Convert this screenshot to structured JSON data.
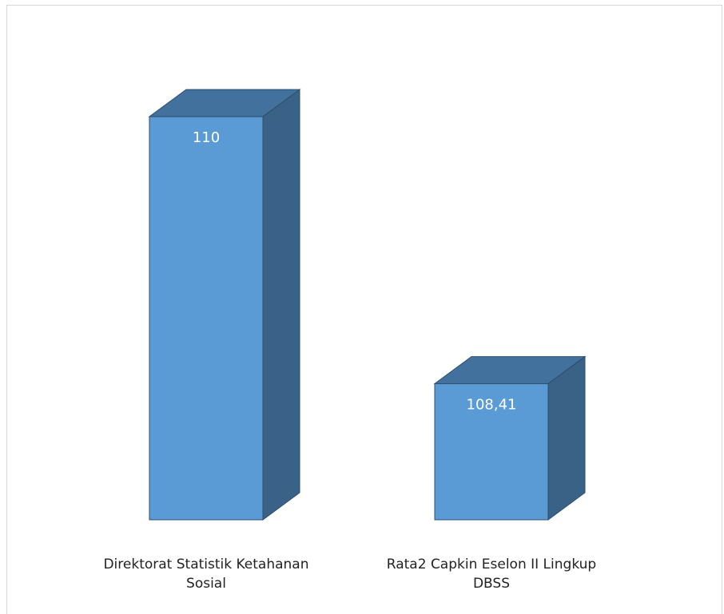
{
  "chart_data": {
    "type": "bar",
    "style": "3d-column",
    "categories": [
      [
        "Direktorat Statistik Ketahanan",
        "Sosial"
      ],
      [
        "Rata2 Capkin Eselon II Lingkup",
        "DBSS"
      ]
    ],
    "values": [
      110,
      108.41
    ],
    "value_labels": [
      "110",
      "108,41"
    ],
    "title": "",
    "xlabel": "",
    "ylabel": "",
    "ylim": [
      107.6,
      110.2
    ],
    "grid": false,
    "legend": "none",
    "colors": {
      "front": "#5b9bd5",
      "side": "#3a6286",
      "top": "#41719c",
      "edge": "#2e4f6e",
      "frame": "#d6d6d6"
    }
  }
}
